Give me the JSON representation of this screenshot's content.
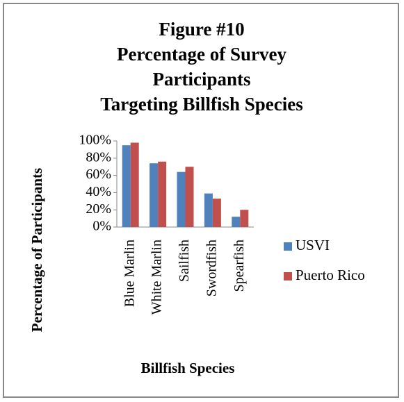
{
  "chart_data": {
    "type": "bar",
    "title": [
      "Figure #10",
      "Percentage of Survey",
      "Participants",
      "Targeting Billfish Species"
    ],
    "categories": [
      "Blue Marlin",
      "White Marlin",
      "Sailfish",
      "Swordfish",
      "Spearfish"
    ],
    "series": [
      {
        "name": "USVI",
        "color": "#4f81bd",
        "values": [
          95,
          74,
          64,
          39,
          12
        ]
      },
      {
        "name": "Puerto Rico",
        "color": "#c0504d",
        "values": [
          98,
          76,
          70,
          33,
          20
        ]
      }
    ],
    "x_label": "Billfish Species",
    "y_label": "Percentage of Participants",
    "ylim": [
      0,
      100
    ],
    "yticks": [
      {
        "value": 0,
        "label": "0%"
      },
      {
        "value": 20,
        "label": "20%"
      },
      {
        "value": 40,
        "label": "40%"
      },
      {
        "value": 60,
        "label": "60%"
      },
      {
        "value": 80,
        "label": "80%"
      },
      {
        "value": 100,
        "label": "100%"
      }
    ],
    "grid": false,
    "legend": "right"
  }
}
